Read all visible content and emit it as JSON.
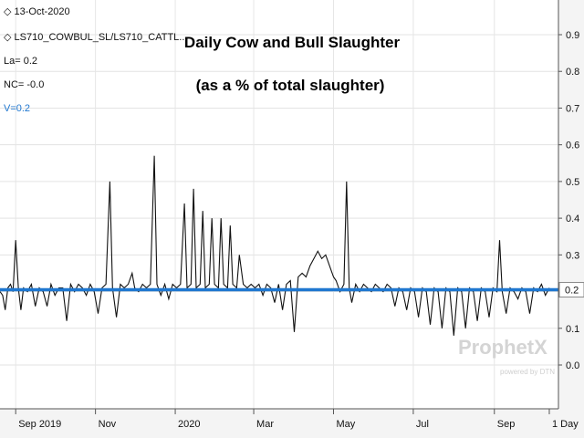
{
  "chart_data": {
    "type": "line",
    "title": "Daily Cow and Bull Slaughter",
    "subtitle": "(as a % of total slaughter)",
    "xlabel": "",
    "ylabel": "",
    "ylim": [
      -0.1,
      0.9
    ],
    "y_ticks": [
      "0.9",
      "0.8",
      "0.7",
      "0.6",
      "0.5",
      "0.4",
      "0.3",
      "0.2",
      "0.1",
      "0.0"
    ],
    "y_tick_values": [
      0.9,
      0.8,
      0.7,
      0.6,
      0.5,
      0.4,
      0.3,
      0.2,
      0.1,
      0.0
    ],
    "x_ticks": [
      "Sep 2019",
      "Nov",
      "2020",
      "Mar",
      "May",
      "Jul",
      "Sep",
      "1 Day"
    ],
    "x_tick_dates": [
      "2019-09-01",
      "2019-11-01",
      "2020-01-01",
      "2020-03-01",
      "2020-05-01",
      "2020-07-01",
      "2020-09-01",
      "2020-10-13"
    ],
    "x_range": [
      "2019-08-20",
      "2020-10-20"
    ],
    "grid": true,
    "legend": {
      "date": "13-Oct-2020",
      "series": "LS710_COWBUL_SL/LS710_CATTL...",
      "la": "La= 0.2",
      "nc": "NC= -0.0",
      "v": "V=0.2"
    },
    "current_value_label": "0.2",
    "reference_line": {
      "value": 0.205,
      "color": "#1f77d0"
    },
    "series": [
      {
        "color": "#111111",
        "points": [
          [
            "2019-08-20",
            0.2
          ],
          [
            "2019-08-22",
            0.19
          ],
          [
            "2019-08-24",
            0.15
          ],
          [
            "2019-08-26",
            0.21
          ],
          [
            "2019-08-28",
            0.22
          ],
          [
            "2019-08-30",
            0.2
          ],
          [
            "2019-09-01",
            0.34
          ],
          [
            "2019-09-03",
            0.21
          ],
          [
            "2019-09-05",
            0.15
          ],
          [
            "2019-09-07",
            0.21
          ],
          [
            "2019-09-10",
            0.2
          ],
          [
            "2019-09-13",
            0.22
          ],
          [
            "2019-09-16",
            0.16
          ],
          [
            "2019-09-19",
            0.21
          ],
          [
            "2019-09-22",
            0.2
          ],
          [
            "2019-09-25",
            0.16
          ],
          [
            "2019-09-28",
            0.22
          ],
          [
            "2019-10-01",
            0.19
          ],
          [
            "2019-10-04",
            0.21
          ],
          [
            "2019-10-07",
            0.21
          ],
          [
            "2019-10-10",
            0.12
          ],
          [
            "2019-10-13",
            0.22
          ],
          [
            "2019-10-16",
            0.2
          ],
          [
            "2019-10-19",
            0.22
          ],
          [
            "2019-10-22",
            0.21
          ],
          [
            "2019-10-25",
            0.19
          ],
          [
            "2019-10-28",
            0.22
          ],
          [
            "2019-10-31",
            0.2
          ],
          [
            "2019-11-03",
            0.14
          ],
          [
            "2019-11-06",
            0.21
          ],
          [
            "2019-11-09",
            0.22
          ],
          [
            "2019-11-12",
            0.5
          ],
          [
            "2019-11-14",
            0.21
          ],
          [
            "2019-11-17",
            0.13
          ],
          [
            "2019-11-20",
            0.22
          ],
          [
            "2019-11-23",
            0.21
          ],
          [
            "2019-11-26",
            0.22
          ],
          [
            "2019-11-29",
            0.25
          ],
          [
            "2019-12-01",
            0.21
          ],
          [
            "2019-12-04",
            0.2
          ],
          [
            "2019-12-07",
            0.22
          ],
          [
            "2019-12-10",
            0.21
          ],
          [
            "2019-12-13",
            0.22
          ],
          [
            "2019-12-16",
            0.57
          ],
          [
            "2019-12-18",
            0.22
          ],
          [
            "2019-12-21",
            0.19
          ],
          [
            "2019-12-24",
            0.22
          ],
          [
            "2019-12-27",
            0.18
          ],
          [
            "2019-12-30",
            0.22
          ],
          [
            "2020-01-02",
            0.21
          ],
          [
            "2020-01-05",
            0.22
          ],
          [
            "2020-01-08",
            0.44
          ],
          [
            "2020-01-10",
            0.21
          ],
          [
            "2020-01-13",
            0.22
          ],
          [
            "2020-01-15",
            0.48
          ],
          [
            "2020-01-17",
            0.21
          ],
          [
            "2020-01-20",
            0.22
          ],
          [
            "2020-01-22",
            0.42
          ],
          [
            "2020-01-24",
            0.21
          ],
          [
            "2020-01-27",
            0.22
          ],
          [
            "2020-01-29",
            0.4
          ],
          [
            "2020-01-31",
            0.22
          ],
          [
            "2020-02-03",
            0.21
          ],
          [
            "2020-02-05",
            0.4
          ],
          [
            "2020-02-07",
            0.22
          ],
          [
            "2020-02-10",
            0.21
          ],
          [
            "2020-02-12",
            0.38
          ],
          [
            "2020-02-14",
            0.22
          ],
          [
            "2020-02-17",
            0.21
          ],
          [
            "2020-02-19",
            0.3
          ],
          [
            "2020-02-22",
            0.22
          ],
          [
            "2020-02-25",
            0.21
          ],
          [
            "2020-02-28",
            0.22
          ],
          [
            "2020-03-02",
            0.21
          ],
          [
            "2020-03-05",
            0.22
          ],
          [
            "2020-03-08",
            0.19
          ],
          [
            "2020-03-11",
            0.22
          ],
          [
            "2020-03-14",
            0.21
          ],
          [
            "2020-03-17",
            0.17
          ],
          [
            "2020-03-20",
            0.22
          ],
          [
            "2020-03-23",
            0.15
          ],
          [
            "2020-03-26",
            0.22
          ],
          [
            "2020-03-29",
            0.23
          ],
          [
            "2020-04-01",
            0.09
          ],
          [
            "2020-04-04",
            0.24
          ],
          [
            "2020-04-07",
            0.25
          ],
          [
            "2020-04-10",
            0.24
          ],
          [
            "2020-04-13",
            0.27
          ],
          [
            "2020-04-16",
            0.29
          ],
          [
            "2020-04-19",
            0.31
          ],
          [
            "2020-04-22",
            0.29
          ],
          [
            "2020-04-25",
            0.3
          ],
          [
            "2020-04-28",
            0.27
          ],
          [
            "2020-05-01",
            0.24
          ],
          [
            "2020-05-03",
            0.23
          ],
          [
            "2020-05-06",
            0.2
          ],
          [
            "2020-05-09",
            0.22
          ],
          [
            "2020-05-11",
            0.5
          ],
          [
            "2020-05-13",
            0.21
          ],
          [
            "2020-05-15",
            0.17
          ],
          [
            "2020-05-18",
            0.22
          ],
          [
            "2020-05-21",
            0.2
          ],
          [
            "2020-05-24",
            0.22
          ],
          [
            "2020-05-27",
            0.21
          ],
          [
            "2020-05-30",
            0.2
          ],
          [
            "2020-06-02",
            0.22
          ],
          [
            "2020-06-05",
            0.21
          ],
          [
            "2020-06-08",
            0.2
          ],
          [
            "2020-06-11",
            0.22
          ],
          [
            "2020-06-14",
            0.21
          ],
          [
            "2020-06-17",
            0.16
          ],
          [
            "2020-06-20",
            0.21
          ],
          [
            "2020-06-23",
            0.2
          ],
          [
            "2020-06-26",
            0.15
          ],
          [
            "2020-06-29",
            0.21
          ],
          [
            "2020-07-02",
            0.2
          ],
          [
            "2020-07-05",
            0.13
          ],
          [
            "2020-07-08",
            0.21
          ],
          [
            "2020-07-11",
            0.2
          ],
          [
            "2020-07-14",
            0.11
          ],
          [
            "2020-07-17",
            0.21
          ],
          [
            "2020-07-20",
            0.2
          ],
          [
            "2020-07-23",
            0.1
          ],
          [
            "2020-07-26",
            0.21
          ],
          [
            "2020-07-29",
            0.2
          ],
          [
            "2020-08-01",
            0.08
          ],
          [
            "2020-08-04",
            0.21
          ],
          [
            "2020-08-07",
            0.2
          ],
          [
            "2020-08-10",
            0.1
          ],
          [
            "2020-08-13",
            0.21
          ],
          [
            "2020-08-16",
            0.2
          ],
          [
            "2020-08-19",
            0.12
          ],
          [
            "2020-08-22",
            0.21
          ],
          [
            "2020-08-25",
            0.2
          ],
          [
            "2020-08-28",
            0.13
          ],
          [
            "2020-08-31",
            0.21
          ],
          [
            "2020-09-03",
            0.2
          ],
          [
            "2020-09-05",
            0.34
          ],
          [
            "2020-09-07",
            0.2
          ],
          [
            "2020-09-10",
            0.14
          ],
          [
            "2020-09-13",
            0.21
          ],
          [
            "2020-09-16",
            0.2
          ],
          [
            "2020-09-19",
            0.18
          ],
          [
            "2020-09-22",
            0.21
          ],
          [
            "2020-09-25",
            0.2
          ],
          [
            "2020-09-28",
            0.14
          ],
          [
            "2020-10-01",
            0.21
          ],
          [
            "2020-10-04",
            0.2
          ],
          [
            "2020-10-07",
            0.22
          ],
          [
            "2020-10-10",
            0.19
          ],
          [
            "2020-10-13",
            0.21
          ]
        ]
      }
    ]
  },
  "watermark": {
    "brand": "ProphetX",
    "tagline": "powered by DTN"
  }
}
